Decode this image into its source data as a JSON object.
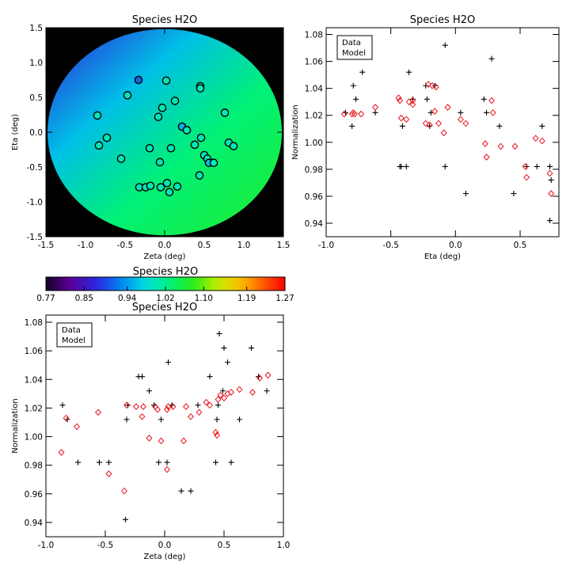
{
  "colors": {
    "data": "#000000",
    "model": "#e8141d",
    "frame": "#000000",
    "background": "#000000"
  },
  "chart_data": [
    {
      "type": "heatmap",
      "title": "Species H2O",
      "xlabel": "Zeta (deg)",
      "ylabel": "Eta (deg)",
      "xlim": [
        -1.5,
        1.5
      ],
      "ylim": [
        -1.5,
        1.5
      ],
      "xticks": [
        "-1.5",
        "-1.0",
        "-0.5",
        "0.0",
        "0.5",
        "1.0",
        "1.5"
      ],
      "yticks": [
        "-1.5",
        "-1.0",
        "-0.5",
        "0.0",
        "0.5",
        "1.0",
        "1.5"
      ],
      "xtick_values": [
        -1.5,
        -1.0,
        -0.5,
        0.0,
        0.5,
        1.0,
        1.5
      ],
      "ytick_values": [
        -1.5,
        -1.0,
        -0.5,
        0.0,
        0.5,
        1.0,
        1.5
      ],
      "field_radius_deg": 1.48,
      "points": [
        {
          "zeta": -0.33,
          "eta": 0.75,
          "value": 0.91
        },
        {
          "zeta": 0.02,
          "eta": 0.74,
          "value": 1.0
        },
        {
          "zeta": 0.45,
          "eta": 0.66,
          "value": 1.0
        },
        {
          "zeta": 0.45,
          "eta": 0.63,
          "value": 1.0
        },
        {
          "zeta": -0.47,
          "eta": 0.53,
          "value": 1.0
        },
        {
          "zeta": 0.13,
          "eta": 0.45,
          "value": 1.0
        },
        {
          "zeta": -0.03,
          "eta": 0.35,
          "value": 1.0
        },
        {
          "zeta": -0.85,
          "eta": 0.24,
          "value": 1.0
        },
        {
          "zeta": -0.08,
          "eta": 0.22,
          "value": 1.0
        },
        {
          "zeta": 0.76,
          "eta": 0.28,
          "value": 1.0
        },
        {
          "zeta": 0.22,
          "eta": 0.08,
          "value": 0.95
        },
        {
          "zeta": 0.28,
          "eta": 0.03,
          "value": 1.0
        },
        {
          "zeta": -0.73,
          "eta": -0.08,
          "value": 1.0
        },
        {
          "zeta": 0.46,
          "eta": -0.08,
          "value": 1.0
        },
        {
          "zeta": -0.83,
          "eta": -0.19,
          "value": 1.0
        },
        {
          "zeta": -0.19,
          "eta": -0.23,
          "value": 1.0
        },
        {
          "zeta": 0.38,
          "eta": -0.18,
          "value": 1.0
        },
        {
          "zeta": 0.81,
          "eta": -0.15,
          "value": 1.0
        },
        {
          "zeta": 0.87,
          "eta": -0.2,
          "value": 1.0
        },
        {
          "zeta": 0.08,
          "eta": -0.23,
          "value": 1.0
        },
        {
          "zeta": 0.5,
          "eta": -0.33,
          "value": 1.0
        },
        {
          "zeta": 0.54,
          "eta": -0.38,
          "value": 1.0
        },
        {
          "zeta": -0.55,
          "eta": -0.38,
          "value": 1.0
        },
        {
          "zeta": -0.06,
          "eta": -0.43,
          "value": 1.0
        },
        {
          "zeta": 0.56,
          "eta": -0.44,
          "value": 0.96
        },
        {
          "zeta": 0.62,
          "eta": -0.44,
          "value": 1.0
        },
        {
          "zeta": 0.44,
          "eta": -0.62,
          "value": 1.0
        },
        {
          "zeta": -0.32,
          "eta": -0.79,
          "value": 1.0
        },
        {
          "zeta": -0.24,
          "eta": -0.79,
          "value": 1.0
        },
        {
          "zeta": -0.18,
          "eta": -0.77,
          "value": 1.0
        },
        {
          "zeta": -0.05,
          "eta": -0.79,
          "value": 1.0
        },
        {
          "zeta": 0.03,
          "eta": -0.73,
          "value": 1.0
        },
        {
          "zeta": 0.16,
          "eta": -0.78,
          "value": 1.0
        },
        {
          "zeta": 0.06,
          "eta": -0.86,
          "value": 1.0
        }
      ]
    },
    {
      "type": "scatter",
      "title": "Species H2O",
      "xlabel": "Eta (deg)",
      "ylabel": "Normalization",
      "xlim": [
        -1.0,
        0.8
      ],
      "ylim": [
        0.93,
        1.085
      ],
      "xticks": [
        "-1.0",
        "-0.5",
        "0.0",
        "0.5"
      ],
      "yticks": [
        "0.94",
        "0.96",
        "0.98",
        "1.00",
        "1.02",
        "1.04",
        "1.06",
        "1.08"
      ],
      "xtick_values": [
        -1.0,
        -0.5,
        0.0,
        0.5
      ],
      "ytick_values": [
        0.94,
        0.96,
        0.98,
        1.0,
        1.02,
        1.04,
        1.06,
        1.08
      ],
      "legend": {
        "position": "top-left",
        "entries": [
          "Data",
          "Model"
        ]
      },
      "series": [
        {
          "name": "Data",
          "marker": "plus",
          "x": [
            -0.85,
            -0.8,
            -0.79,
            -0.77,
            -0.72,
            -0.62,
            -0.43,
            -0.42,
            -0.41,
            -0.38,
            -0.36,
            -0.33,
            -0.23,
            -0.22,
            -0.2,
            -0.19,
            -0.16,
            -0.08,
            -0.08,
            0.04,
            0.08,
            0.22,
            0.24,
            0.28,
            0.34,
            0.45,
            0.55,
            0.63,
            0.67,
            0.73,
            0.74,
            0.73
          ],
          "y": [
            1.022,
            1.012,
            1.042,
            1.032,
            1.052,
            1.022,
            0.982,
            0.982,
            1.012,
            0.982,
            1.052,
            1.032,
            1.042,
            1.032,
            1.012,
            1.022,
            1.042,
            1.072,
            0.982,
            1.022,
            0.962,
            1.032,
            1.022,
            1.062,
            1.012,
            0.962,
            0.982,
            0.982,
            1.012,
            0.982,
            0.972,
            0.942
          ]
        },
        {
          "name": "Model",
          "marker": "diamond",
          "x": [
            -0.86,
            -0.8,
            -0.79,
            -0.78,
            -0.73,
            -0.62,
            -0.44,
            -0.43,
            -0.42,
            -0.38,
            -0.36,
            -0.33,
            -0.33,
            -0.23,
            -0.21,
            -0.2,
            -0.18,
            -0.16,
            -0.15,
            -0.13,
            -0.09,
            -0.06,
            0.04,
            0.08,
            0.23,
            0.24,
            0.28,
            0.29,
            0.35,
            0.46,
            0.54,
            0.55,
            0.62,
            0.67,
            0.73,
            0.74
          ],
          "y": [
            1.021,
            1.021,
            1.022,
            1.021,
            1.021,
            1.026,
            1.033,
            1.031,
            1.018,
            1.017,
            1.03,
            1.031,
            1.028,
            1.014,
            1.043,
            1.013,
            1.042,
            1.023,
            1.041,
            1.014,
            1.007,
            1.026,
            1.017,
            1.014,
            0.999,
            0.989,
            1.031,
            1.022,
            0.997,
            0.997,
            0.982,
            0.974,
            1.003,
            1.001,
            0.977,
            0.962
          ]
        }
      ]
    },
    {
      "type": "colorbar",
      "title": "Species H2O",
      "ticks": [
        "0.77",
        "0.85",
        "0.94",
        "1.02",
        "1.10",
        "1.19",
        "1.27"
      ],
      "tick_values": [
        0.77,
        0.85,
        0.94,
        1.02,
        1.1,
        1.19,
        1.27
      ],
      "range": [
        0.77,
        1.27
      ],
      "colormap": "rainbow"
    },
    {
      "type": "scatter",
      "title": "Species H2O",
      "xlabel": "Zeta (deg)",
      "ylabel": "Normalization",
      "xlim": [
        -1.0,
        1.0
      ],
      "ylim": [
        0.93,
        1.085
      ],
      "xticks": [
        "-1.0",
        "-0.5",
        "0.0",
        "0.5",
        "1.0"
      ],
      "yticks": [
        "0.94",
        "0.96",
        "0.98",
        "1.00",
        "1.02",
        "1.04",
        "1.06",
        "1.08"
      ],
      "xtick_values": [
        -1.0,
        -0.5,
        0.0,
        0.5,
        1.0
      ],
      "ytick_values": [
        0.94,
        0.96,
        0.98,
        1.0,
        1.02,
        1.04,
        1.06,
        1.08
      ],
      "legend": {
        "position": "top-left",
        "entries": [
          "Data",
          "Model"
        ]
      },
      "series": [
        {
          "name": "Data",
          "marker": "plus",
          "x": [
            -0.86,
            -0.82,
            -0.73,
            -0.55,
            -0.47,
            -0.33,
            -0.32,
            -0.31,
            -0.22,
            -0.19,
            -0.13,
            -0.09,
            -0.05,
            -0.03,
            0.02,
            0.03,
            0.06,
            0.14,
            0.22,
            0.28,
            0.38,
            0.43,
            0.44,
            0.45,
            0.46,
            0.49,
            0.5,
            0.53,
            0.56,
            0.63,
            0.73,
            0.79,
            0.86
          ],
          "y": [
            1.022,
            1.012,
            0.982,
            0.982,
            0.982,
            0.942,
            1.012,
            1.022,
            1.042,
            1.042,
            1.032,
            1.022,
            0.982,
            1.012,
            0.982,
            1.052,
            1.022,
            0.962,
            0.962,
            1.022,
            1.042,
            0.982,
            1.012,
            1.022,
            1.072,
            1.032,
            1.062,
            1.052,
            0.982,
            1.012,
            1.062,
            1.042,
            1.032
          ]
        },
        {
          "name": "Model",
          "marker": "diamond",
          "x": [
            -0.87,
            -0.83,
            -0.74,
            -0.56,
            -0.47,
            -0.34,
            -0.32,
            -0.24,
            -0.19,
            -0.18,
            -0.13,
            -0.08,
            -0.06,
            -0.03,
            0.02,
            0.02,
            0.03,
            0.07,
            0.16,
            0.18,
            0.22,
            0.29,
            0.35,
            0.38,
            0.43,
            0.44,
            0.45,
            0.47,
            0.5,
            0.53,
            0.56,
            0.63,
            0.74,
            0.8,
            0.87
          ],
          "y": [
            0.989,
            1.013,
            1.007,
            1.017,
            0.974,
            0.962,
            1.022,
            1.021,
            1.014,
            1.021,
            0.999,
            1.021,
            1.019,
            0.997,
            0.977,
            1.019,
            1.021,
            1.021,
            0.997,
            1.021,
            1.014,
            1.017,
            1.024,
            1.022,
            1.003,
            1.001,
            1.026,
            1.029,
            1.027,
            1.03,
            1.031,
            1.033,
            1.031,
            1.041,
            1.043
          ]
        }
      ]
    }
  ]
}
